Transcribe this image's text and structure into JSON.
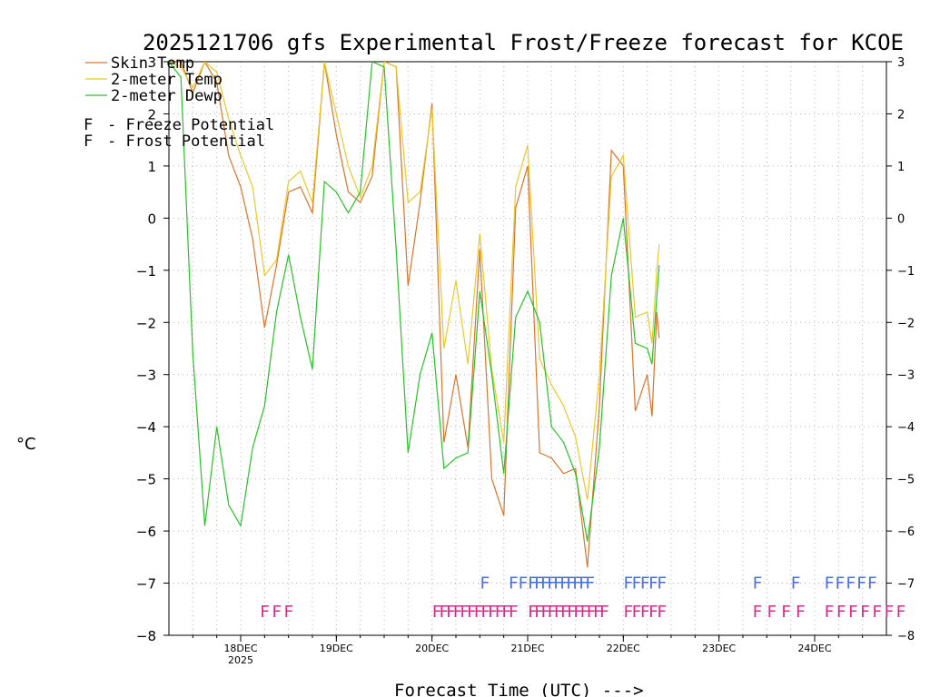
{
  "chart_data": {
    "type": "line",
    "title": "2025121706 gfs Experimental Frost/Freeze forecast for KCOE",
    "ylabel": "°C",
    "xlabel": "Forecast Time (UTC) --->",
    "ylim": [
      -8,
      3
    ],
    "yticks": [
      -8,
      -7,
      -6,
      -5,
      -4,
      -3,
      -2,
      -1,
      0,
      1,
      2,
      3
    ],
    "xlim": [
      0,
      7.5
    ],
    "date_ticks": [
      {
        "x": 0.75,
        "label": "18DEC",
        "sub": "2025"
      },
      {
        "x": 1.75,
        "label": "19DEC"
      },
      {
        "x": 2.75,
        "label": "20DEC"
      },
      {
        "x": 3.75,
        "label": "21DEC"
      },
      {
        "x": 4.75,
        "label": "22DEC"
      },
      {
        "x": 5.75,
        "label": "23DEC"
      },
      {
        "x": 6.75,
        "label": "24DEC"
      }
    ],
    "legend": [
      {
        "label": "Skin Temp",
        "color": "#d9742b"
      },
      {
        "label": "2-meter Temp",
        "color": "#e8c82c"
      },
      {
        "label": "2-meter Dewp",
        "color": "#27c227"
      }
    ],
    "potential_legend": [
      {
        "symbol": "F",
        "text": "- Freeze Potential",
        "color": "#d62a8a"
      },
      {
        "symbol": "F",
        "text": "- Frost Potential",
        "color": "#4a6fd6"
      }
    ],
    "series": [
      {
        "name": "Skin Temp",
        "color": "#d9742b",
        "x": [
          0.0,
          0.125,
          0.25,
          0.375,
          0.5,
          0.625,
          0.75,
          0.875,
          1.0,
          1.125,
          1.25,
          1.375,
          1.5,
          1.625,
          1.75,
          1.875,
          2.0,
          2.125,
          2.25,
          2.375,
          2.5,
          2.625,
          2.75,
          2.875,
          3.0,
          3.125,
          3.25,
          3.375,
          3.5,
          3.625,
          3.75,
          3.875,
          4.0,
          4.125,
          4.25,
          4.375,
          4.5,
          4.625,
          4.75,
          4.875,
          5.0,
          5.05,
          5.1,
          5.125
        ],
        "values": [
          3.0,
          3.0,
          2.4,
          3.0,
          2.6,
          1.2,
          0.6,
          -0.4,
          -2.1,
          -0.9,
          0.5,
          0.6,
          0.1,
          3.0,
          1.6,
          0.5,
          0.3,
          0.8,
          3.0,
          2.9,
          -1.3,
          0.3,
          2.2,
          -4.3,
          -3.0,
          -4.4,
          -0.6,
          -5.0,
          -5.7,
          0.2,
          1.0,
          -4.5,
          -4.6,
          -4.9,
          -4.8,
          -6.7,
          -3.6,
          1.3,
          1.0,
          -3.7,
          -3.0,
          -3.8,
          -1.8,
          -2.3
        ]
      },
      {
        "name": "2-meter Temp",
        "color": "#e8c82c",
        "x": [
          0.0,
          0.125,
          0.25,
          0.375,
          0.5,
          0.625,
          0.75,
          0.875,
          1.0,
          1.125,
          1.25,
          1.375,
          1.5,
          1.625,
          1.75,
          1.875,
          2.0,
          2.125,
          2.25,
          2.375,
          2.5,
          2.625,
          2.75,
          2.875,
          3.0,
          3.125,
          3.25,
          3.375,
          3.5,
          3.625,
          3.75,
          3.875,
          4.0,
          4.125,
          4.25,
          4.375,
          4.5,
          4.625,
          4.75,
          4.875,
          5.0,
          5.05,
          5.1,
          5.125
        ],
        "values": [
          3.0,
          2.9,
          2.5,
          3.0,
          2.8,
          1.9,
          1.2,
          0.6,
          -1.1,
          -0.8,
          0.7,
          0.9,
          0.3,
          3.0,
          2.0,
          1.0,
          0.4,
          1.0,
          3.0,
          2.9,
          0.3,
          0.5,
          2.1,
          -2.5,
          -1.2,
          -2.8,
          -0.3,
          -2.9,
          -4.3,
          0.6,
          1.4,
          -2.7,
          -3.2,
          -3.6,
          -4.2,
          -5.4,
          -3.0,
          0.8,
          1.2,
          -1.9,
          -1.8,
          -2.4,
          -1.0,
          -0.5
        ]
      },
      {
        "name": "2-meter Dewp",
        "color": "#27c227",
        "x": [
          0.0,
          0.125,
          0.25,
          0.375,
          0.5,
          0.625,
          0.75,
          0.875,
          1.0,
          1.125,
          1.25,
          1.375,
          1.5,
          1.625,
          1.75,
          1.875,
          2.0,
          2.125,
          2.25,
          2.375,
          2.5,
          2.625,
          2.75,
          2.875,
          3.0,
          3.125,
          3.25,
          3.375,
          3.5,
          3.625,
          3.75,
          3.875,
          4.0,
          4.125,
          4.25,
          4.375,
          4.5,
          4.625,
          4.75,
          4.875,
          5.0,
          5.05,
          5.1,
          5.125
        ],
        "values": [
          3.0,
          2.7,
          -2.6,
          -5.9,
          -4.0,
          -5.5,
          -5.9,
          -4.4,
          -3.6,
          -1.8,
          -0.7,
          -1.9,
          -2.9,
          0.7,
          0.5,
          0.1,
          0.5,
          3.0,
          2.9,
          -0.6,
          -4.5,
          -3.0,
          -2.2,
          -4.8,
          -4.6,
          -4.5,
          -1.4,
          -3.0,
          -4.9,
          -1.9,
          -1.4,
          -2.0,
          -4.0,
          -4.3,
          -4.9,
          -6.2,
          -4.4,
          -1.1,
          0.0,
          -2.4,
          -2.5,
          -2.8,
          -1.5,
          -0.9
        ]
      }
    ],
    "frost_runs": [
      {
        "start": 3.25,
        "end": 3.3,
        "count": 1
      },
      {
        "start": 3.55,
        "end": 3.65,
        "count": 2
      },
      {
        "start": 3.75,
        "end": 4.35,
        "count": 10
      },
      {
        "start": 4.75,
        "end": 5.1,
        "count": 5
      },
      {
        "start": 6.1,
        "end": 6.15,
        "count": 1
      },
      {
        "start": 6.5,
        "end": 6.55,
        "count": 1
      },
      {
        "start": 6.85,
        "end": 7.3,
        "count": 5
      }
    ],
    "freeze_runs": [
      {
        "start": 0.95,
        "end": 1.2,
        "count": 3
      },
      {
        "start": 2.75,
        "end": 3.55,
        "count": 12
      },
      {
        "start": 3.75,
        "end": 4.5,
        "count": 12
      },
      {
        "start": 4.75,
        "end": 5.1,
        "count": 5
      },
      {
        "start": 6.1,
        "end": 6.55,
        "count": 4
      },
      {
        "start": 6.85,
        "end": 7.6,
        "count": 7
      }
    ]
  }
}
